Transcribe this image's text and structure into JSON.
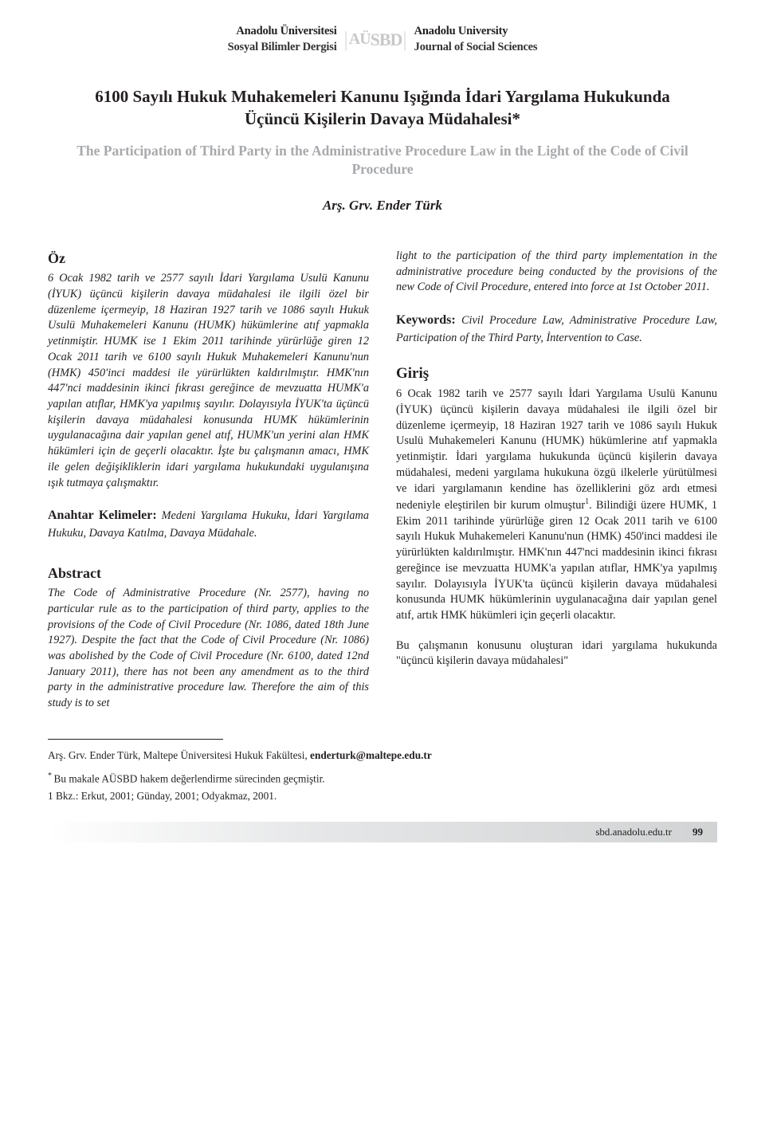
{
  "header": {
    "left_line1": "Anadolu Üniversitesi",
    "left_line2": "Sosyal Bilimler Dergisi",
    "logo_au": "AÜ",
    "logo_sbd": "SBD",
    "right_line1": "Anadolu University",
    "right_line2": "Journal of Social Sciences"
  },
  "title_tr": "6100 Sayılı Hukuk Muhakemeleri Kanunu Işığında İdari Yargılama Hukukunda Üçüncü Kişilerin Davaya Müdahalesi*",
  "title_en": "The Participation of Third Party in the Administrative Procedure Law in the Light of the Code of Civil Procedure",
  "author": "Arş. Grv. Ender Türk",
  "oz": {
    "head": "Öz",
    "body": "6 Ocak 1982 tarih ve 2577 sayılı İdari Yargılama Usulü Kanunu (İYUK) üçüncü kişilerin davaya müdahalesi ile ilgili özel bir düzenleme içermeyip, 18 Haziran 1927 tarih ve 1086 sayılı Hukuk Usulü Muhakemeleri Kanunu (HUMK) hükümlerine atıf yapmakla yetinmiştir. HUMK ise 1 Ekim 2011 tarihinde yürürlüğe giren 12 Ocak 2011 tarih ve 6100 sayılı Hukuk Muhakemeleri Kanunu'nun (HMK) 450'inci maddesi ile yürürlükten kaldırılmıştır. HMK'nın 447'nci maddesinin ikinci fıkrası gereğince de mevzuatta HUMK'a yapılan atıflar, HMK'ya yapılmış sayılır. Dolayısıyla İYUK'ta üçüncü kişilerin davaya müdahalesi konusunda HUMK hükümlerinin uygulanacağına dair yapılan genel atıf, HUMK'un yerini alan HMK hükümleri için de geçerli olacaktır. İşte bu çalışmanın amacı, HMK ile gelen değişikliklerin idari yargılama hukukundaki uygulanışına ışık tutmaya çalışmaktır."
  },
  "anahtar": {
    "label": "Anahtar Kelimeler:",
    "text": " Medeni Yargılama Hukuku, İdari Yargılama Hukuku, Davaya Katılma, Davaya Müdahale."
  },
  "abstract": {
    "head": "Abstract",
    "body": "The Code of Administrative Procedure (Nr. 2577), having no particular rule as to the participation of third party, applies to the provisions of the Code of Civil Procedure (Nr. 1086, dated 18th June 1927). Despite the fact that the Code of Civil Procedure (Nr. 1086) was abolished by the Code of Civil Procedure (Nr. 6100, dated 12nd January 2011), there has not been any amendment as to the third party in the administrative procedure law. Therefore the aim of this study is to set",
    "cont": "light to the participation of the third party implementation in the administrative procedure being conducted by the provisions of the new Code of Civil Procedure, entered into force at 1st October 2011."
  },
  "keywords": {
    "label": "Keywords:",
    "text": " Civil Procedure Law, Administrative Procedure Law, Participation of the Third Party, İntervention to Case."
  },
  "giris": {
    "head": "Giriş",
    "body_pre_fn": "6 Ocak 1982 tarih ve 2577 sayılı İdari Yargılama Usulü Kanunu (İYUK) üçüncü kişilerin davaya müdahalesi ile ilgili özel bir düzenleme içermeyip, 18 Haziran 1927 tarih ve 1086 sayılı Hukuk Usulü Muhakemeleri Kanunu (HUMK) hükümlerine atıf yapmakla yetinmiştir. İdari yargılama hukukunda üçüncü kişilerin davaya müdahalesi, medeni yargılama hukukuna özgü ilkelerle yürütülmesi ve idari yargılamanın kendine has özelliklerini göz ardı etmesi nedeniyle eleştirilen bir kurum olmuştur",
    "fn_marker": "1",
    "body_post_fn": ". Bilindiği üzere HUMK, 1 Ekim 2011 tarihinde yürürlüğe giren 12 Ocak 2011 tarih ve 6100 sayılı Hukuk Muhakemeleri Kanunu'nun (HMK) 450'inci maddesi ile yürürlükten kaldırılmıştır. HMK'nın 447'nci maddesinin ikinci fıkrası gereğince ise mevzuatta HUMK'a yapılan atıflar, HMK'ya yapılmış sayılır. Dolayısıyla İYUK'ta üçüncü kişilerin davaya müdahalesi konusunda HUMK hükümlerinin uygulanacağına dair yapılan genel atıf, artık HMK hükümleri için geçerli olacaktır.",
    "body2": "Bu çalışmanın konusunu oluşturan idari yargılama hukukunda \"üçüncü kişilerin davaya müdahalesi\""
  },
  "footnotes": {
    "affiliation_pre": "Arş. Grv. Ender Türk,  Maltepe Üniversitesi  Hukuk Fakültesi,  ",
    "email": "enderturk@maltepe.edu.tr",
    "star": "* ",
    "star_text": "Bu makale AÜSBD hakem değerlendirme sürecinden geçmiştir.",
    "fn1_num": "1 ",
    "fn1_text": "Bkz.: Erkut, 2001; Günday, 2001; Odyakmaz, 2001."
  },
  "footer": {
    "url": "sbd.anadolu.edu.tr",
    "page": "99"
  }
}
